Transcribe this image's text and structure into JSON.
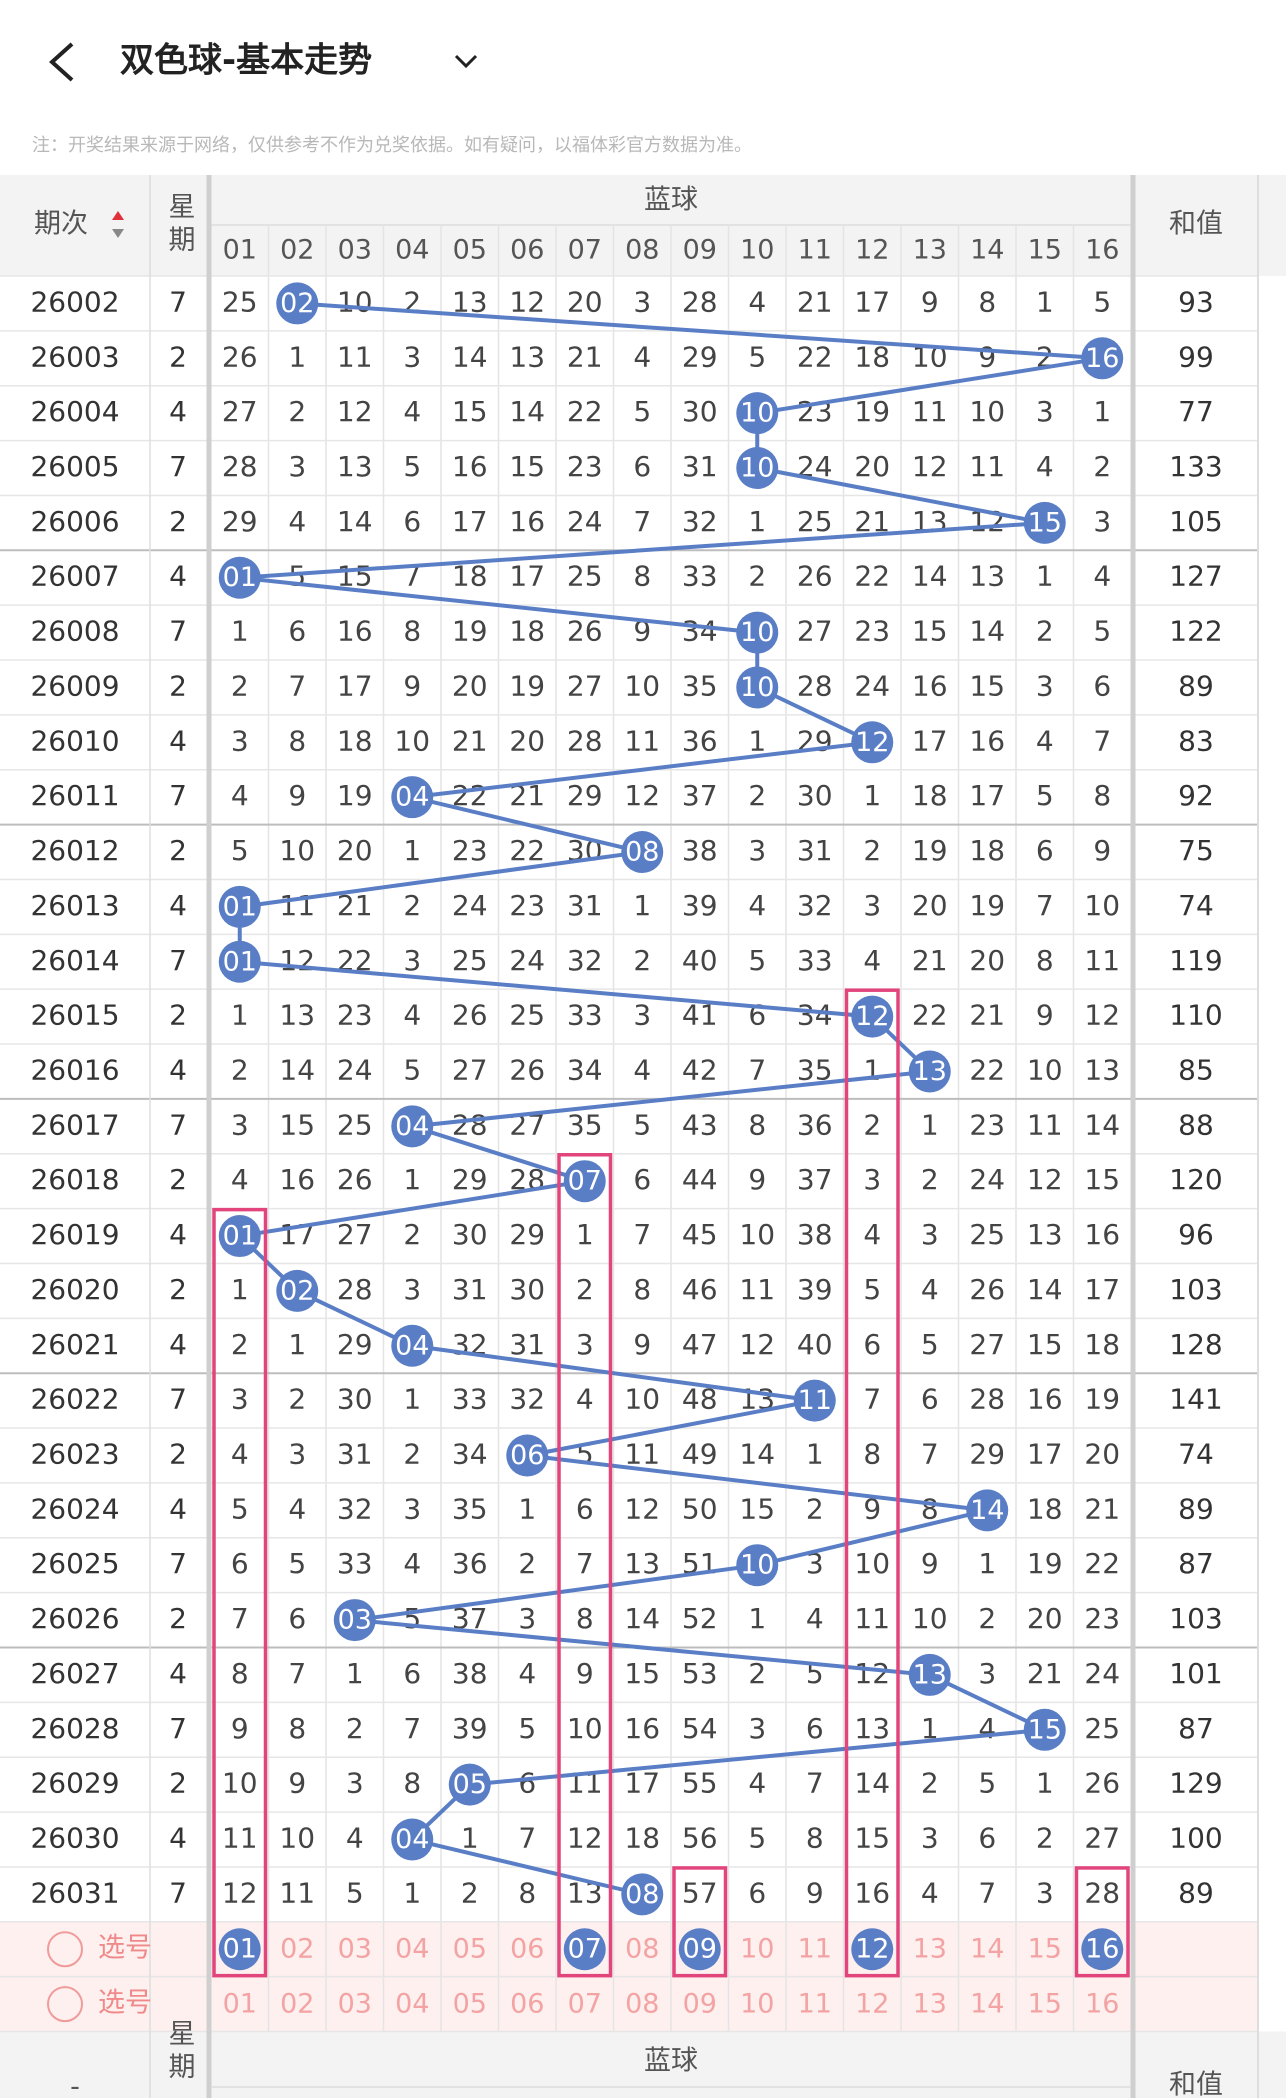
{
  "header": {
    "title": "双色球-基本走势"
  },
  "notice": "注：开奖结果来源于网络，仅供参考不作为兑奖依据。如有疑问，以福体彩官方数据为准。",
  "table": {
    "columns": {
      "period": "期次",
      "weekday": "星期",
      "blue": "蓝球",
      "sum": "和值",
      "numbers": [
        "01",
        "02",
        "03",
        "04",
        "05",
        "06",
        "07",
        "08",
        "09",
        "10",
        "11",
        "12",
        "13",
        "14",
        "15",
        "16"
      ]
    },
    "rows": [
      {
        "period": "26002",
        "weekday": 7,
        "cells": [
          "25",
          "02",
          "10",
          "2",
          "13",
          "12",
          "20",
          "3",
          "28",
          "4",
          "21",
          "17",
          "9",
          "8",
          "1",
          "5"
        ],
        "ball": 1,
        "sum": 93
      },
      {
        "period": "26003",
        "weekday": 2,
        "cells": [
          "26",
          "1",
          "11",
          "3",
          "14",
          "13",
          "21",
          "4",
          "29",
          "5",
          "22",
          "18",
          "10",
          "9",
          "2",
          "16"
        ],
        "ball": 15,
        "sum": 99
      },
      {
        "period": "26004",
        "weekday": 4,
        "cells": [
          "27",
          "2",
          "12",
          "4",
          "15",
          "14",
          "22",
          "5",
          "30",
          "10",
          "23",
          "19",
          "11",
          "10",
          "3",
          "1"
        ],
        "ball": 9,
        "sum": 77
      },
      {
        "period": "26005",
        "weekday": 7,
        "cells": [
          "28",
          "3",
          "13",
          "5",
          "16",
          "15",
          "23",
          "6",
          "31",
          "10",
          "24",
          "20",
          "12",
          "11",
          "4",
          "2"
        ],
        "ball": 9,
        "sum": 133
      },
      {
        "period": "26006",
        "weekday": 2,
        "cells": [
          "29",
          "4",
          "14",
          "6",
          "17",
          "16",
          "24",
          "7",
          "32",
          "1",
          "25",
          "21",
          "13",
          "12",
          "15",
          "3"
        ],
        "ball": 14,
        "sum": 105
      },
      {
        "period": "26007",
        "weekday": 4,
        "cells": [
          "01",
          "5",
          "15",
          "7",
          "18",
          "17",
          "25",
          "8",
          "33",
          "2",
          "26",
          "22",
          "14",
          "13",
          "1",
          "4"
        ],
        "ball": 0,
        "sum": 127
      },
      {
        "period": "26008",
        "weekday": 7,
        "cells": [
          "1",
          "6",
          "16",
          "8",
          "19",
          "18",
          "26",
          "9",
          "34",
          "10",
          "27",
          "23",
          "15",
          "14",
          "2",
          "5"
        ],
        "ball": 9,
        "sum": 122
      },
      {
        "period": "26009",
        "weekday": 2,
        "cells": [
          "2",
          "7",
          "17",
          "9",
          "20",
          "19",
          "27",
          "10",
          "35",
          "10",
          "28",
          "24",
          "16",
          "15",
          "3",
          "6"
        ],
        "ball": 9,
        "sum": 89
      },
      {
        "period": "26010",
        "weekday": 4,
        "cells": [
          "3",
          "8",
          "18",
          "10",
          "21",
          "20",
          "28",
          "11",
          "36",
          "1",
          "29",
          "12",
          "17",
          "16",
          "4",
          "7"
        ],
        "ball": 11,
        "sum": 83
      },
      {
        "period": "26011",
        "weekday": 7,
        "cells": [
          "4",
          "9",
          "19",
          "04",
          "22",
          "21",
          "29",
          "12",
          "37",
          "2",
          "30",
          "1",
          "18",
          "17",
          "5",
          "8"
        ],
        "ball": 3,
        "sum": 92
      },
      {
        "period": "26012",
        "weekday": 2,
        "cells": [
          "5",
          "10",
          "20",
          "1",
          "23",
          "22",
          "30",
          "08",
          "38",
          "3",
          "31",
          "2",
          "19",
          "18",
          "6",
          "9"
        ],
        "ball": 7,
        "sum": 75
      },
      {
        "period": "26013",
        "weekday": 4,
        "cells": [
          "01",
          "11",
          "21",
          "2",
          "24",
          "23",
          "31",
          "1",
          "39",
          "4",
          "32",
          "3",
          "20",
          "19",
          "7",
          "10"
        ],
        "ball": 0,
        "sum": 74
      },
      {
        "period": "26014",
        "weekday": 7,
        "cells": [
          "01",
          "12",
          "22",
          "3",
          "25",
          "24",
          "32",
          "2",
          "40",
          "5",
          "33",
          "4",
          "21",
          "20",
          "8",
          "11"
        ],
        "ball": 0,
        "sum": 119
      },
      {
        "period": "26015",
        "weekday": 2,
        "cells": [
          "1",
          "13",
          "23",
          "4",
          "26",
          "25",
          "33",
          "3",
          "41",
          "6",
          "34",
          "12",
          "22",
          "21",
          "9",
          "12"
        ],
        "ball": 11,
        "sum": 110
      },
      {
        "period": "26016",
        "weekday": 4,
        "cells": [
          "2",
          "14",
          "24",
          "5",
          "27",
          "26",
          "34",
          "4",
          "42",
          "7",
          "35",
          "1",
          "13",
          "22",
          "10",
          "13"
        ],
        "ball": 12,
        "sum": 85
      },
      {
        "period": "26017",
        "weekday": 7,
        "cells": [
          "3",
          "15",
          "25",
          "04",
          "28",
          "27",
          "35",
          "5",
          "43",
          "8",
          "36",
          "2",
          "1",
          "23",
          "11",
          "14"
        ],
        "ball": 3,
        "sum": 88
      },
      {
        "period": "26018",
        "weekday": 2,
        "cells": [
          "4",
          "16",
          "26",
          "1",
          "29",
          "28",
          "07",
          "6",
          "44",
          "9",
          "37",
          "3",
          "2",
          "24",
          "12",
          "15"
        ],
        "ball": 6,
        "sum": 120
      },
      {
        "period": "26019",
        "weekday": 4,
        "cells": [
          "01",
          "17",
          "27",
          "2",
          "30",
          "29",
          "1",
          "7",
          "45",
          "10",
          "38",
          "4",
          "3",
          "25",
          "13",
          "16"
        ],
        "ball": 0,
        "sum": 96
      },
      {
        "period": "26020",
        "weekday": 2,
        "cells": [
          "1",
          "02",
          "28",
          "3",
          "31",
          "30",
          "2",
          "8",
          "46",
          "11",
          "39",
          "5",
          "4",
          "26",
          "14",
          "17"
        ],
        "ball": 1,
        "sum": 103
      },
      {
        "period": "26021",
        "weekday": 4,
        "cells": [
          "2",
          "1",
          "29",
          "04",
          "32",
          "31",
          "3",
          "9",
          "47",
          "12",
          "40",
          "6",
          "5",
          "27",
          "15",
          "18"
        ],
        "ball": 3,
        "sum": 128
      },
      {
        "period": "26022",
        "weekday": 7,
        "cells": [
          "3",
          "2",
          "30",
          "1",
          "33",
          "32",
          "4",
          "10",
          "48",
          "13",
          "11",
          "7",
          "6",
          "28",
          "16",
          "19"
        ],
        "ball": 10,
        "sum": 141
      },
      {
        "period": "26023",
        "weekday": 2,
        "cells": [
          "4",
          "3",
          "31",
          "2",
          "34",
          "06",
          "5",
          "11",
          "49",
          "14",
          "1",
          "8",
          "7",
          "29",
          "17",
          "20"
        ],
        "ball": 5,
        "sum": 74
      },
      {
        "period": "26024",
        "weekday": 4,
        "cells": [
          "5",
          "4",
          "32",
          "3",
          "35",
          "1",
          "6",
          "12",
          "50",
          "15",
          "2",
          "9",
          "8",
          "14",
          "18",
          "21"
        ],
        "ball": 13,
        "sum": 89
      },
      {
        "period": "26025",
        "weekday": 7,
        "cells": [
          "6",
          "5",
          "33",
          "4",
          "36",
          "2",
          "7",
          "13",
          "51",
          "10",
          "3",
          "10",
          "9",
          "1",
          "19",
          "22"
        ],
        "ball": 9,
        "sum": 87
      },
      {
        "period": "26026",
        "weekday": 2,
        "cells": [
          "7",
          "6",
          "03",
          "5",
          "37",
          "3",
          "8",
          "14",
          "52",
          "1",
          "4",
          "11",
          "10",
          "2",
          "20",
          "23"
        ],
        "ball": 2,
        "sum": 103
      },
      {
        "period": "26027",
        "weekday": 4,
        "cells": [
          "8",
          "7",
          "1",
          "6",
          "38",
          "4",
          "9",
          "15",
          "53",
          "2",
          "5",
          "12",
          "13",
          "3",
          "21",
          "24"
        ],
        "ball": 12,
        "sum": 101
      },
      {
        "period": "26028",
        "weekday": 7,
        "cells": [
          "9",
          "8",
          "2",
          "7",
          "39",
          "5",
          "10",
          "16",
          "54",
          "3",
          "6",
          "13",
          "1",
          "4",
          "15",
          "25"
        ],
        "ball": 14,
        "sum": 87
      },
      {
        "period": "26029",
        "weekday": 2,
        "cells": [
          "10",
          "9",
          "3",
          "8",
          "05",
          "6",
          "11",
          "17",
          "55",
          "4",
          "7",
          "14",
          "2",
          "5",
          "1",
          "26"
        ],
        "ball": 4,
        "sum": 129
      },
      {
        "period": "26030",
        "weekday": 4,
        "cells": [
          "11",
          "10",
          "4",
          "04",
          "1",
          "7",
          "12",
          "18",
          "56",
          "5",
          "8",
          "15",
          "3",
          "6",
          "2",
          "27"
        ],
        "ball": 3,
        "sum": 100
      },
      {
        "period": "26031",
        "weekday": 7,
        "cells": [
          "12",
          "11",
          "5",
          "1",
          "2",
          "8",
          "13",
          "08",
          "57",
          "6",
          "9",
          "16",
          "4",
          "7",
          "3",
          "28"
        ],
        "ball": 7,
        "sum": 89
      }
    ],
    "select_rows": [
      {
        "label": "选号",
        "numbers": [
          "01",
          "02",
          "03",
          "04",
          "05",
          "06",
          "07",
          "08",
          "09",
          "10",
          "11",
          "12",
          "13",
          "14",
          "15",
          "16"
        ],
        "picked": [
          0,
          6,
          8,
          11,
          15
        ]
      },
      {
        "label": "选号",
        "numbers": [
          "01",
          "02",
          "03",
          "04",
          "05",
          "06",
          "07",
          "08",
          "09",
          "10",
          "11",
          "12",
          "13",
          "14",
          "15",
          "16"
        ],
        "picked": []
      }
    ]
  },
  "footer_header": {
    "period": "-",
    "weekday": "星期",
    "blue": "蓝球",
    "sum": "和值"
  }
}
